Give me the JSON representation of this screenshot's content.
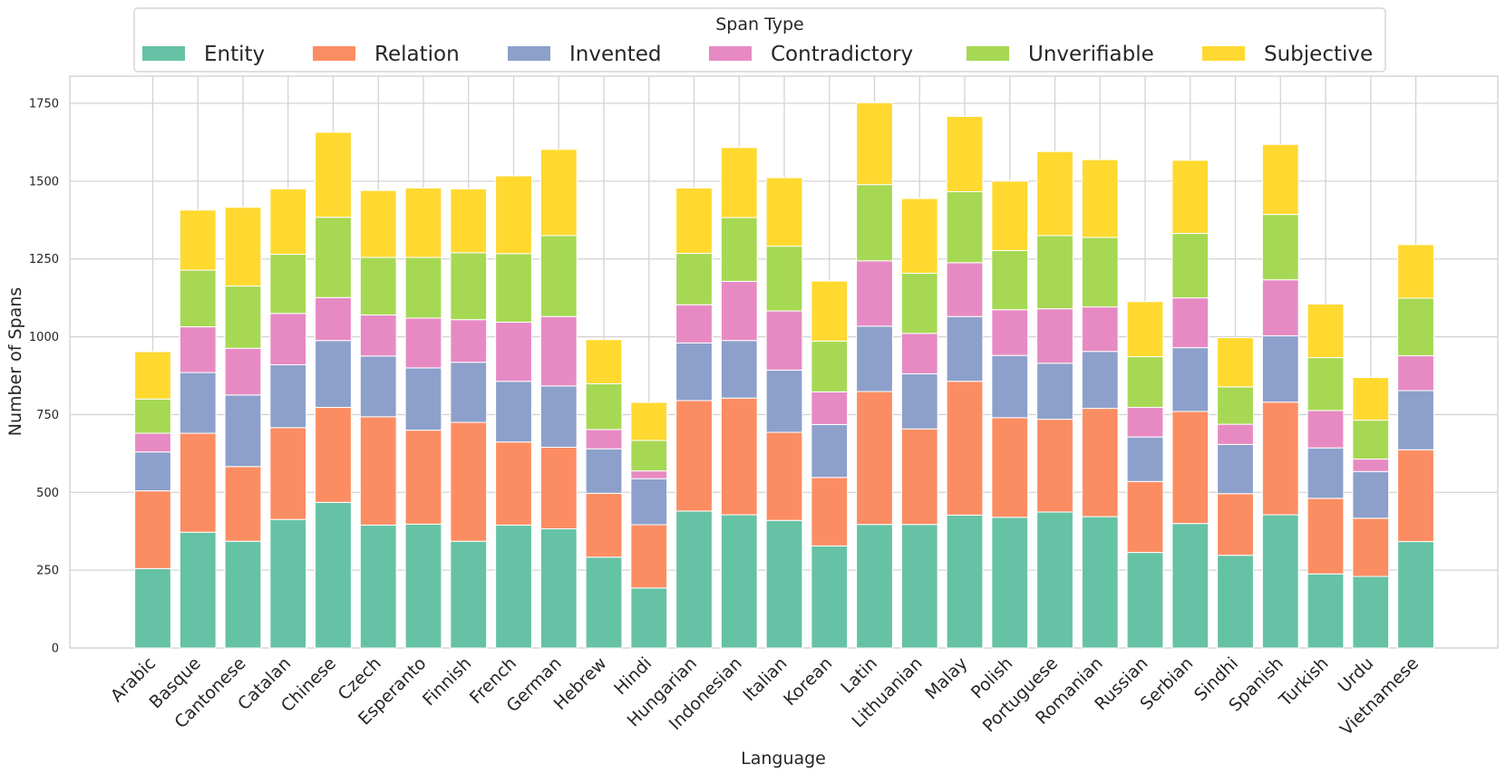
{
  "chart_data": {
    "type": "bar",
    "stacked": true,
    "title": "",
    "xlabel": "Language",
    "ylabel": "Number of Spans",
    "ylim": [
      0,
      1830
    ],
    "yticks": [
      0,
      250,
      500,
      750,
      1000,
      1250,
      1500,
      1750
    ],
    "grid": true,
    "legend": {
      "title": "Span Type",
      "position": "top-center"
    },
    "categories": [
      "Arabic",
      "Basque",
      "Cantonese",
      "Catalan",
      "Chinese",
      "Czech",
      "Esperanto",
      "Finnish",
      "French",
      "German",
      "Hebrew",
      "Hindi",
      "Hungarian",
      "Indonesian",
      "Italian",
      "Korean",
      "Latin",
      "Lithuanian",
      "Malay",
      "Polish",
      "Portuguese",
      "Romanian",
      "Russian",
      "Serbian",
      "Sindhi",
      "Spanish",
      "Turkish",
      "Urdu",
      "Vietnamese"
    ],
    "series": [
      {
        "name": "Entity",
        "color": "#66c2a5",
        "values": [
          255,
          372,
          343,
          413,
          468,
          395,
          398,
          343,
          395,
          383,
          292,
          193,
          440,
          428,
          410,
          328,
          397,
          397,
          427,
          420,
          437,
          422,
          307,
          400,
          298,
          428,
          238,
          230,
          342
        ]
      },
      {
        "name": "Relation",
        "color": "#fc8d62",
        "values": [
          250,
          318,
          240,
          295,
          305,
          348,
          302,
          382,
          267,
          262,
          205,
          203,
          355,
          375,
          283,
          220,
          427,
          307,
          430,
          320,
          298,
          348,
          228,
          360,
          198,
          362,
          243,
          187,
          295
        ]
      },
      {
        "name": "Invented",
        "color": "#8da0cb",
        "values": [
          125,
          195,
          230,
          202,
          215,
          195,
          200,
          193,
          195,
          197,
          143,
          148,
          185,
          185,
          200,
          170,
          210,
          177,
          208,
          200,
          180,
          183,
          143,
          205,
          158,
          213,
          162,
          150,
          190
        ]
      },
      {
        "name": "Contradictory",
        "color": "#e78ac3",
        "values": [
          60,
          147,
          150,
          165,
          138,
          132,
          160,
          137,
          190,
          223,
          62,
          25,
          123,
          190,
          190,
          105,
          210,
          130,
          173,
          147,
          175,
          143,
          95,
          160,
          65,
          180,
          120,
          40,
          112
        ]
      },
      {
        "name": "Unverifiable",
        "color": "#a6d854",
        "values": [
          110,
          182,
          200,
          190,
          258,
          185,
          195,
          215,
          220,
          260,
          147,
          98,
          165,
          205,
          208,
          163,
          245,
          193,
          228,
          190,
          235,
          223,
          163,
          207,
          120,
          210,
          170,
          125,
          185
        ]
      },
      {
        "name": "Subjective",
        "color": "#ffd92f",
        "values": [
          152,
          193,
          253,
          210,
          273,
          215,
          223,
          205,
          250,
          277,
          142,
          122,
          210,
          225,
          220,
          193,
          263,
          240,
          242,
          223,
          270,
          250,
          177,
          235,
          158,
          225,
          172,
          137,
          172
        ]
      }
    ]
  }
}
